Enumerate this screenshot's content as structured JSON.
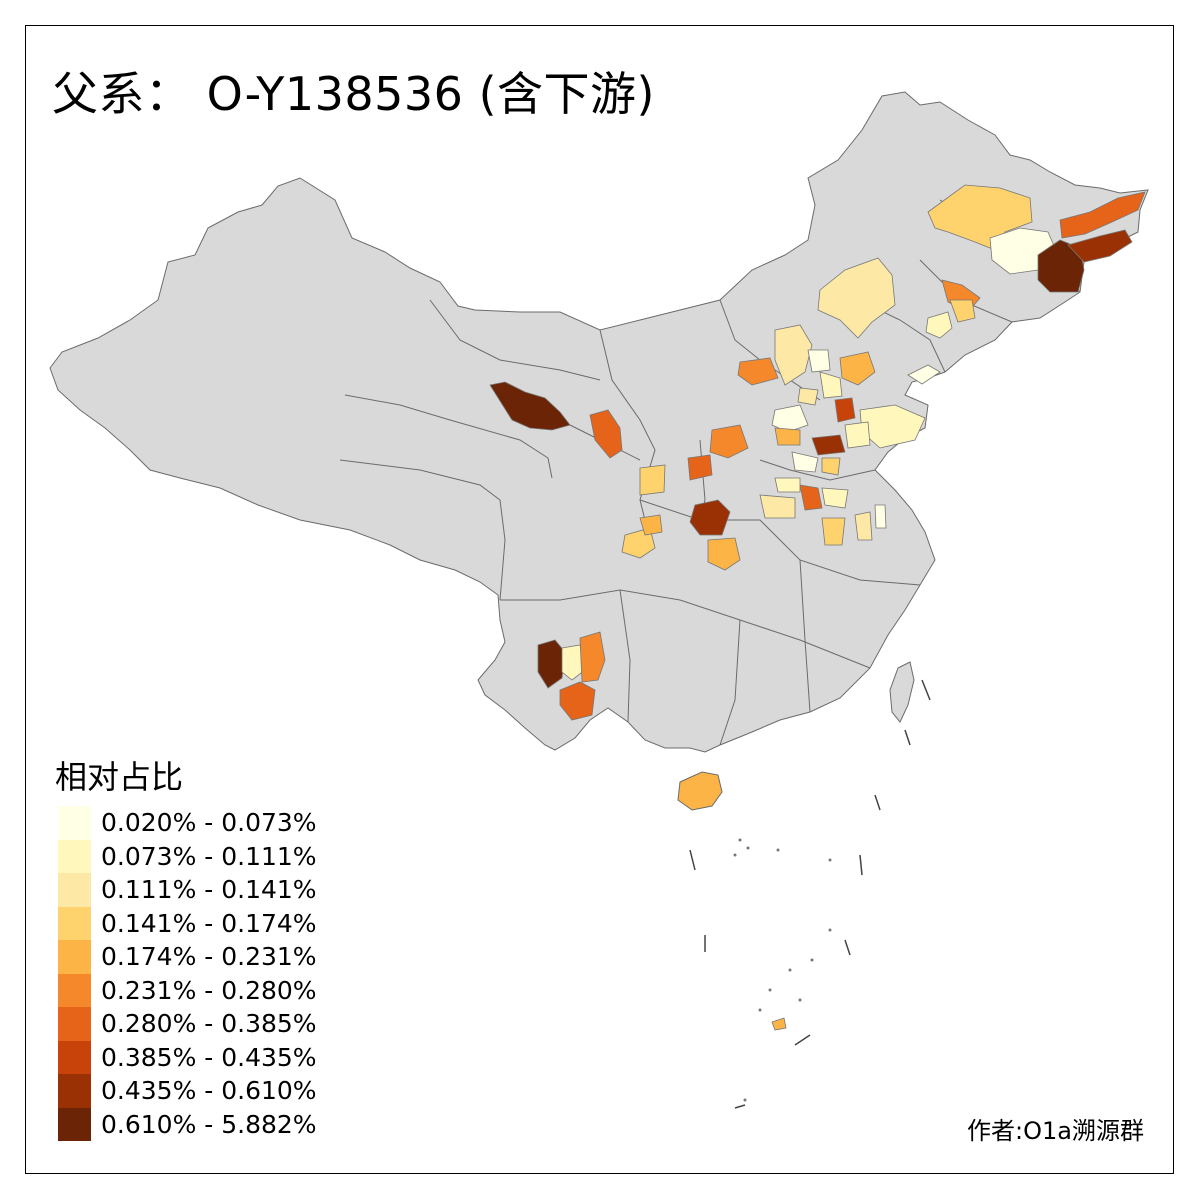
{
  "map": {
    "title": "父系： O-Y138536 (含下游)",
    "legend_title": "相对占比",
    "author": "作者:O1a溯源群",
    "base_fill": "#d9d9d9",
    "border_color": "#6b6b6b",
    "legend": [
      {
        "label": "0.020% - 0.073%",
        "color": "#ffffe5"
      },
      {
        "label": "0.073% - 0.111%",
        "color": "#fff7bc"
      },
      {
        "label": "0.111% - 0.141%",
        "color": "#fee8a6"
      },
      {
        "label": "0.141% - 0.174%",
        "color": "#fed36e"
      },
      {
        "label": "0.174% - 0.231%",
        "color": "#fdb447"
      },
      {
        "label": "0.231% - 0.280%",
        "color": "#f6882c"
      },
      {
        "label": "0.280% - 0.385%",
        "color": "#e6631a"
      },
      {
        "label": "0.385% - 0.435%",
        "color": "#c74309"
      },
      {
        "label": "0.435% - 0.610%",
        "color": "#9a3104"
      },
      {
        "label": "0.610% - 5.882%",
        "color": "#6b2405"
      }
    ]
  }
}
